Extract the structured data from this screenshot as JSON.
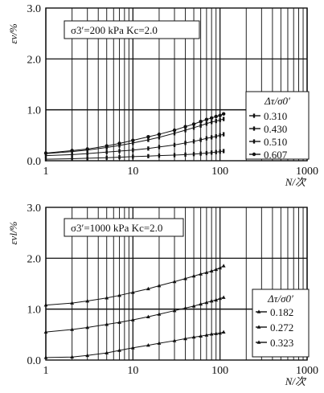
{
  "chart_data": [
    {
      "type": "line",
      "x_scale": "log",
      "xlim": [
        1,
        1000
      ],
      "ylim": [
        0.0,
        3.0
      ],
      "yticks": [
        "0.0",
        "1.0",
        "2.0",
        "3.0"
      ],
      "xticks": [
        "1",
        "10",
        "100",
        "1000"
      ],
      "ylabel": "εv/%",
      "xlabel": "N/次",
      "condition": "σ3′=200 kPa   Kc=2.0",
      "legend_title": "Δτ/σ0′",
      "legend_position": "right",
      "series": [
        {
          "name": "0.310",
          "marker": "bar",
          "x": [
            1,
            2,
            3,
            5,
            7,
            10,
            15,
            20,
            30,
            40,
            50,
            60,
            70,
            80,
            90,
            100,
            110
          ],
          "y": [
            0.03,
            0.04,
            0.05,
            0.06,
            0.07,
            0.08,
            0.09,
            0.1,
            0.11,
            0.12,
            0.13,
            0.14,
            0.15,
            0.16,
            0.17,
            0.18,
            0.19
          ]
        },
        {
          "name": "0.430",
          "marker": "bar",
          "x": [
            1,
            2,
            3,
            5,
            7,
            10,
            15,
            20,
            30,
            40,
            50,
            60,
            70,
            80,
            90,
            100,
            110
          ],
          "y": [
            0.1,
            0.12,
            0.14,
            0.17,
            0.19,
            0.21,
            0.24,
            0.27,
            0.31,
            0.35,
            0.38,
            0.41,
            0.44,
            0.46,
            0.48,
            0.5,
            0.52
          ]
        },
        {
          "name": "0.510",
          "marker": "bar",
          "x": [
            1,
            2,
            3,
            5,
            7,
            10,
            15,
            20,
            30,
            40,
            50,
            60,
            70,
            80,
            90,
            100,
            110
          ],
          "y": [
            0.14,
            0.18,
            0.21,
            0.26,
            0.3,
            0.35,
            0.41,
            0.46,
            0.54,
            0.6,
            0.65,
            0.69,
            0.73,
            0.76,
            0.78,
            0.8,
            0.82
          ]
        },
        {
          "name": "0.607",
          "marker": "dot",
          "x": [
            1,
            2,
            3,
            5,
            7,
            10,
            15,
            20,
            30,
            40,
            50,
            60,
            70,
            80,
            90,
            100,
            110
          ],
          "y": [
            0.15,
            0.2,
            0.23,
            0.29,
            0.34,
            0.4,
            0.47,
            0.52,
            0.6,
            0.67,
            0.72,
            0.77,
            0.81,
            0.84,
            0.87,
            0.89,
            0.92
          ]
        }
      ]
    },
    {
      "type": "line",
      "x_scale": "log",
      "xlim": [
        1,
        1000
      ],
      "ylim": [
        0.0,
        3.0
      ],
      "yticks": [
        "0.0",
        "1.0",
        "2.0",
        "3.0"
      ],
      "xticks": [
        "1",
        "10",
        "100",
        "1000"
      ],
      "ylabel": "εvl/%",
      "xlabel": "N/次",
      "condition": "σ3′=1000 kPa   Kc=2.0",
      "legend_title": "Δτ/σ0′",
      "legend_position": "bottom-right",
      "series": [
        {
          "name": "0.182",
          "marker": "tri",
          "x": [
            1,
            2,
            3,
            5,
            7,
            10,
            15,
            20,
            30,
            40,
            50,
            60,
            70,
            80,
            90,
            100,
            110
          ],
          "y": [
            0.05,
            0.06,
            0.09,
            0.14,
            0.19,
            0.24,
            0.29,
            0.33,
            0.38,
            0.42,
            0.45,
            0.47,
            0.49,
            0.51,
            0.52,
            0.53,
            0.55
          ]
        },
        {
          "name": "0.272",
          "marker": "tri",
          "x": [
            1,
            2,
            3,
            5,
            7,
            10,
            15,
            20,
            30,
            40,
            50,
            60,
            70,
            80,
            90,
            100,
            110
          ],
          "y": [
            0.55,
            0.6,
            0.64,
            0.7,
            0.74,
            0.79,
            0.85,
            0.9,
            0.97,
            1.02,
            1.06,
            1.1,
            1.13,
            1.16,
            1.18,
            1.21,
            1.23
          ]
        },
        {
          "name": "0.323",
          "marker": "tri",
          "x": [
            1,
            2,
            3,
            5,
            7,
            10,
            15,
            20,
            30,
            40,
            50,
            60,
            70,
            80,
            90,
            100,
            110
          ],
          "y": [
            1.08,
            1.12,
            1.16,
            1.22,
            1.27,
            1.33,
            1.4,
            1.46,
            1.54,
            1.6,
            1.65,
            1.69,
            1.72,
            1.75,
            1.78,
            1.81,
            1.85
          ]
        }
      ]
    }
  ]
}
